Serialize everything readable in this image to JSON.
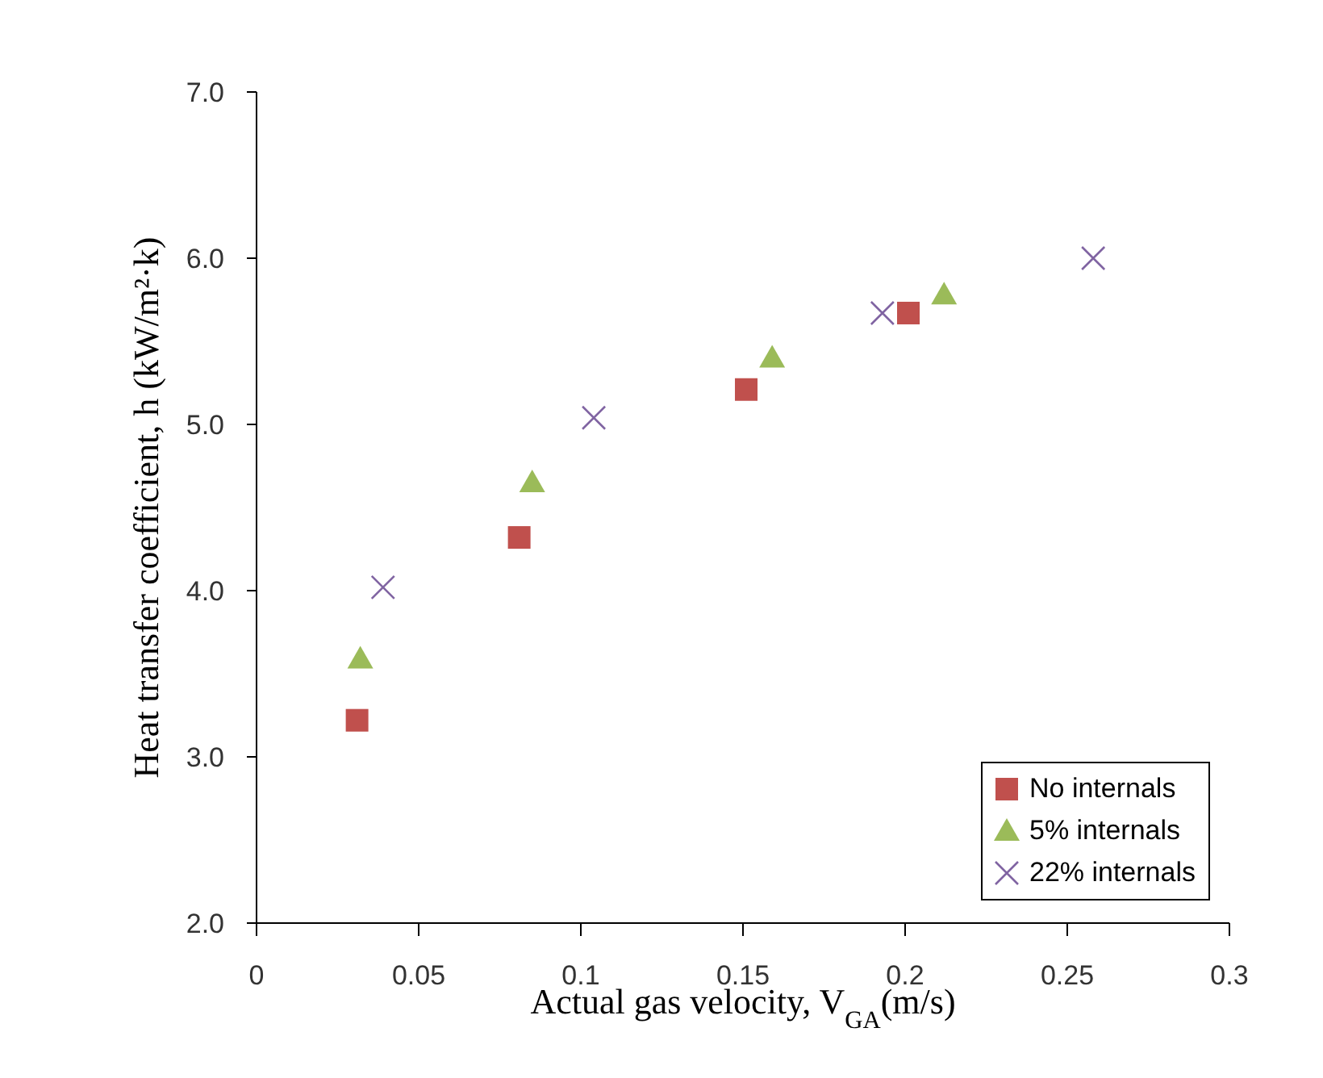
{
  "chart_data": {
    "type": "scatter",
    "xlabel": "Actual gas velocity, V$_{GA}$(m/s)",
    "ylabel": "Heat transfer coefficient, h (kW/m²·k)",
    "xlim": [
      0,
      0.3
    ],
    "xticks": [
      0,
      0.05,
      0.1,
      0.15,
      0.2,
      0.25,
      0.3
    ],
    "ylim": [
      2,
      7
    ],
    "yticks": [
      {
        "value": 2,
        "label": "2.0"
      },
      {
        "value": 3,
        "label": "3.0"
      },
      {
        "value": 4,
        "label": "4.0"
      },
      {
        "value": 5,
        "label": "5.0"
      },
      {
        "value": 6,
        "label": "6.0"
      },
      {
        "value": 7,
        "label": "7.0"
      }
    ],
    "grid": false,
    "legend": "bottom right",
    "series": [
      {
        "name": "No internals",
        "color": "#c0504d",
        "marker": "square",
        "x": [
          0.031,
          0.081,
          0.151,
          0.201
        ],
        "values": [
          3.22,
          4.32,
          5.21,
          5.67
        ]
      },
      {
        "name": "5% internals",
        "color": "#9bbb59",
        "marker": "triangle",
        "x": [
          0.032,
          0.085,
          0.159,
          0.212
        ],
        "values": [
          3.59,
          4.65,
          5.4,
          5.78
        ]
      },
      {
        "name": "22% internals",
        "color": "#8064a2",
        "marker": "cross",
        "x": [
          0.039,
          0.104,
          0.193,
          0.258
        ],
        "values": [
          4.02,
          5.04,
          5.67,
          6.0
        ]
      }
    ]
  }
}
